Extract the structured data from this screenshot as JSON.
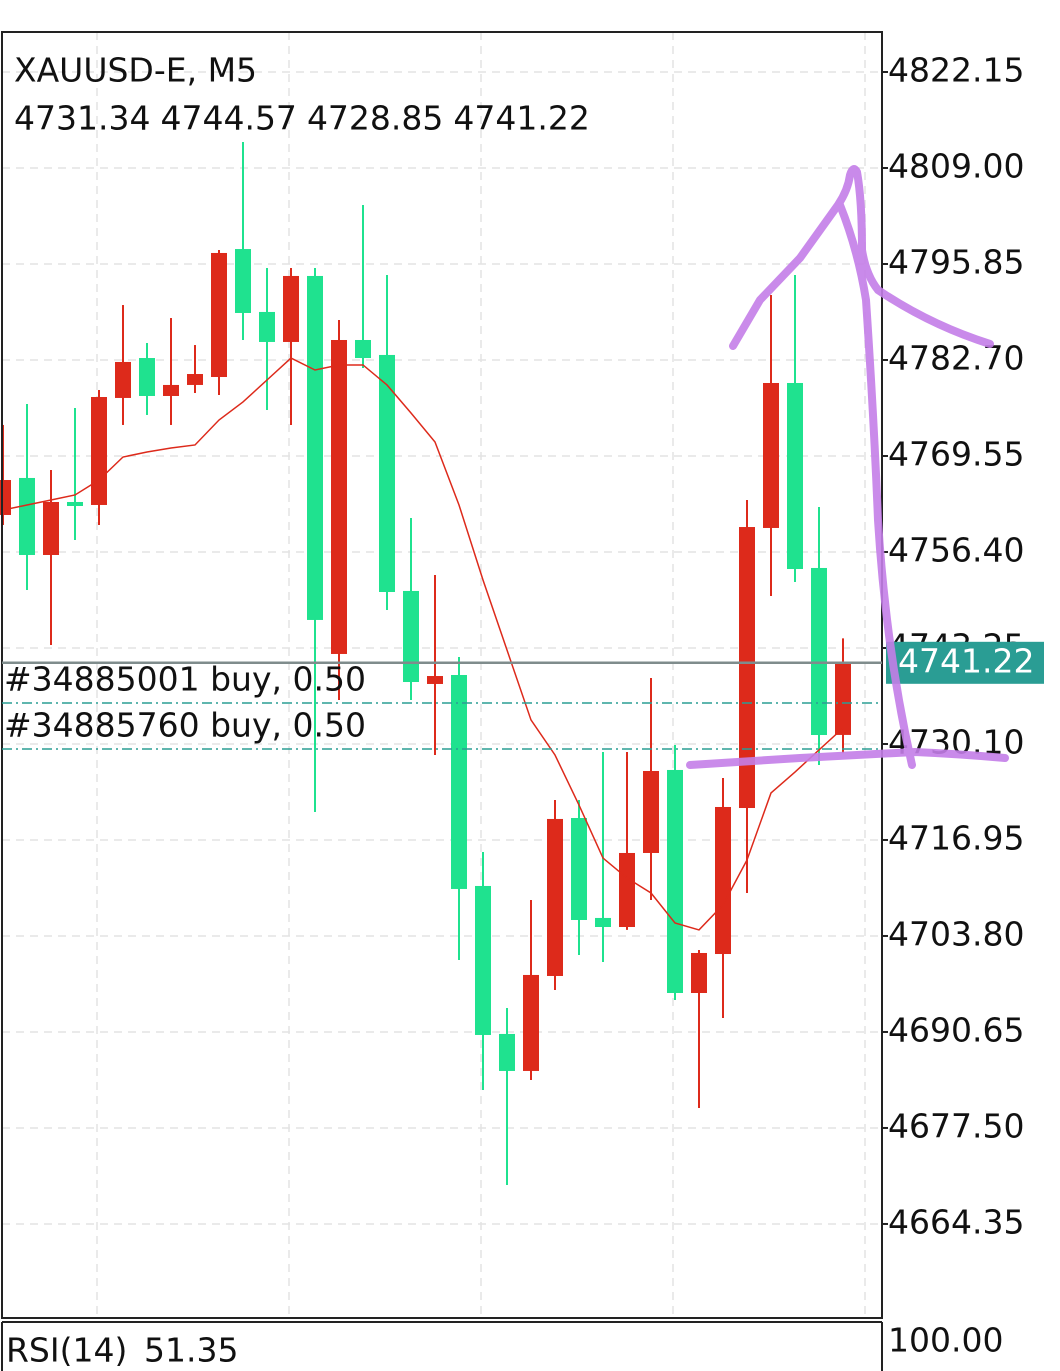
{
  "chart_data": {
    "type": "candlestick",
    "title": "XAUUSD-E, M5",
    "categories": [
      null,
      null,
      null,
      null,
      null,
      null,
      null,
      null,
      null,
      null,
      null,
      null,
      null,
      null,
      null,
      null,
      null,
      null,
      null,
      null,
      null,
      null,
      null,
      null,
      null,
      null,
      null,
      null,
      null,
      null,
      null,
      null,
      null,
      null,
      null,
      null
    ],
    "open": [
      4761.47,
      4766.54,
      4755.99,
      4763.25,
      4762.84,
      4777.5,
      4782.97,
      4777.77,
      4779.28,
      4780.37,
      4797.9,
      4789.28,
      4785.17,
      4794.21,
      4742.43,
      4785.44,
      4783.39,
      4751.06,
      4738.32,
      4739.55,
      4710.65,
      4690.38,
      4685.31,
      4698.32,
      4719.96,
      4706.27,
      4705.03,
      4715.17,
      4726.54,
      4695.99,
      4701.33,
      4721.33,
      4759.69,
      4779.55,
      4754.21,
      4731.34
    ],
    "high": [
      4773.8,
      4776.67,
      4767.63,
      4776.13,
      4778.59,
      4790.23,
      4785.03,
      4788.45,
      4784.75,
      4797.77,
      4812.56,
      4795.3,
      4795.3,
      4795.3,
      4788.18,
      4803.93,
      4794.34,
      4761.06,
      4753.25,
      4742.02,
      4715.31,
      4693.94,
      4708.73,
      4722.43,
      4722.43,
      4729.0,
      4729.0,
      4739.14,
      4729.96,
      4701.88,
      4725.44,
      4763.52,
      4791.6,
      4794.34,
      4762.56,
      4744.57
    ],
    "low": [
      4760.1,
      4751.19,
      4743.66,
      4758.04,
      4760.1,
      4773.8,
      4775.17,
      4773.8,
      4778.18,
      4777.91,
      4785.44,
      4775.85,
      4773.8,
      4720.79,
      4736.13,
      4781.6,
      4748.46,
      4736.13,
      4728.59,
      4700.51,
      4682.71,
      4669.69,
      4684.08,
      4696.4,
      4701.2,
      4700.24,
      4704.63,
      4708.73,
      4695.03,
      4680.24,
      4692.57,
      4709.69,
      4750.37,
      4752.29,
      4727.22,
      4728.85
    ],
    "close": [
      4766.26,
      4755.99,
      4763.25,
      4762.7,
      4777.63,
      4782.43,
      4777.77,
      4779.28,
      4780.78,
      4797.36,
      4789.14,
      4785.17,
      4794.21,
      4747.09,
      4785.44,
      4782.97,
      4750.92,
      4738.59,
      4739.41,
      4710.24,
      4690.24,
      4685.31,
      4698.46,
      4719.83,
      4705.99,
      4705.03,
      4715.17,
      4726.4,
      4695.99,
      4701.47,
      4721.47,
      4759.82,
      4779.55,
      4754.07,
      4731.33,
      4741.22
    ],
    "up_color": "#dd2a1b",
    "down_color": "#1fe28f",
    "ma": {
      "color": "#dd2a1b",
      "values": [
        4762.15,
        4762.84,
        4763.52,
        4764.21,
        4766.26,
        4769.41,
        4770.1,
        4770.65,
        4771.06,
        4774.48,
        4776.95,
        4779.96,
        4782.97,
        4781.33,
        4782.02,
        4782.02,
        4779.28,
        4775.44,
        4771.47,
        4762.84,
        4752.56,
        4742.98,
        4733.39,
        4728.59,
        4721.74,
        4714.48,
        4711.74,
        4709.69,
        4705.58,
        4704.63,
        4708.05,
        4714.21,
        4723.39,
        4726.26,
        4729.28,
        4732.29
      ]
    },
    "price_line_color": "#7f8c8c",
    "price_box_color": "#2a9d94",
    "orders": [
      {
        "label": "#34885001 buy, 0.50",
        "price": 4735.72
      },
      {
        "label": "#34885760 buy, 0.50",
        "price": 4729.42
      }
    ],
    "order_color": "#2a9d94",
    "ylim": [
      4651.47,
      4827.63
    ],
    "yticks": [
      4822.15,
      {
        "value": 4809,
        "label": "4809.00"
      },
      4795.85,
      {
        "value": 4782.7,
        "label": "4782.70"
      },
      4769.55,
      {
        "value": 4756.4,
        "label": "4756.40"
      },
      4743.25,
      {
        "value": 4730.1,
        "label": "4730.10"
      },
      4716.95,
      {
        "value": 4703.8,
        "label": "4703.80"
      },
      4690.65,
      {
        "value": 4677.5,
        "label": "4677.50"
      },
      4664.35
    ],
    "grid": true,
    "rsi": {
      "name": "RSI(14)",
      "value": 51.35,
      "ytick": {
        "value": 100,
        "label": "100.00"
      }
    }
  }
}
